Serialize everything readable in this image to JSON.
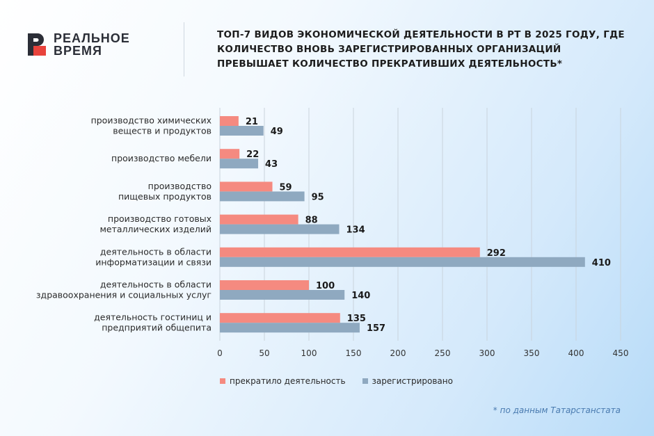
{
  "brand": {
    "line1": "РЕАЛЬНОЕ",
    "line2": "ВРЕМЯ"
  },
  "title": "ТОП-7 ВИДОВ ЭКОНОМИЧЕСКОЙ ДЕЯТЕЛЬНОСТИ В РТ В 2025 ГОДУ, ГДЕ КОЛИЧЕСТВО ВНОВЬ ЗАРЕГИСТРИРОВАННЫХ ОРГАНИЗАЦИЙ ПРЕВЫШАЕТ КОЛИЧЕСТВО ПРЕКРАТИВШИХ ДЕЯТЕЛЬНОСТЬ*",
  "footnote": "* по данным Татарстанстата",
  "colors": {
    "closed": "#f58a80",
    "registered": "#8fa9c0",
    "brand_red": "#e8433c",
    "brand_dark": "#2b2e37"
  },
  "chart_data": {
    "type": "bar",
    "orientation": "horizontal",
    "categories": [
      [
        "производство химических",
        "веществ и продуктов"
      ],
      [
        "производство мебели"
      ],
      [
        "производство",
        "пищевых продуктов"
      ],
      [
        "производство готовых",
        "металлических изделий"
      ],
      [
        "деятельность в области",
        "информатизации и связи"
      ],
      [
        "деятельность в области",
        "здравоохранения и социальных услуг"
      ],
      [
        "деятельность гостиниц и",
        "предприятий общепита"
      ]
    ],
    "series": [
      {
        "name": "прекратило деятельность",
        "color": "#f58a80",
        "values": [
          21,
          22,
          59,
          88,
          292,
          100,
          135
        ]
      },
      {
        "name": "зарегистрировано",
        "color": "#8fa9c0",
        "values": [
          49,
          43,
          95,
          134,
          410,
          140,
          157
        ]
      }
    ],
    "xlim": [
      0,
      450
    ],
    "xticks": [
      0,
      50,
      100,
      150,
      200,
      250,
      300,
      350,
      400,
      450
    ],
    "grid": true,
    "legend": "bottom"
  }
}
